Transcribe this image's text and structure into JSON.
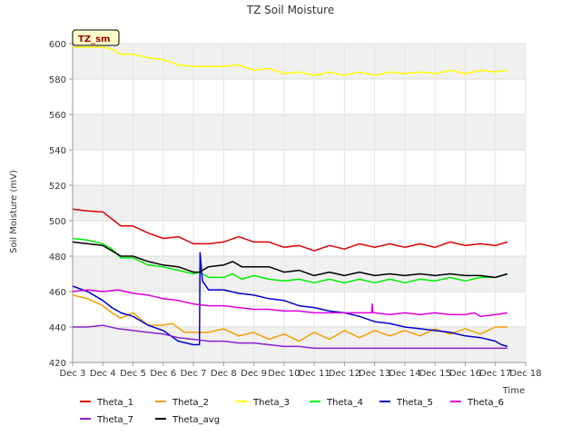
{
  "chart_data": {
    "type": "line",
    "title": "TZ Soil Moisture",
    "xlabel": "Time",
    "ylabel": "Soil Moisture (mV)",
    "badge": "TZ_sm",
    "ylim": [
      420,
      600
    ],
    "xlim": [
      3,
      18
    ],
    "yticks": [
      420,
      440,
      460,
      480,
      500,
      520,
      540,
      560,
      580,
      600
    ],
    "xticks": [
      {
        "v": 3,
        "label": "Dec 3"
      },
      {
        "v": 4,
        "label": "Dec 4"
      },
      {
        "v": 5,
        "label": "Dec 5"
      },
      {
        "v": 6,
        "label": "Dec 6"
      },
      {
        "v": 7,
        "label": "Dec 7"
      },
      {
        "v": 8,
        "label": "Dec 8"
      },
      {
        "v": 9,
        "label": "Dec 9"
      },
      {
        "v": 10,
        "label": "Dec 10"
      },
      {
        "v": 11,
        "label": "Dec 11"
      },
      {
        "v": 12,
        "label": "Dec 12"
      },
      {
        "v": 13,
        "label": "Dec 13"
      },
      {
        "v": 14,
        "label": "Dec 14"
      },
      {
        "v": 15,
        "label": "Dec 15"
      },
      {
        "v": 16,
        "label": "Dec 16"
      },
      {
        "v": 17,
        "label": "Dec 17"
      },
      {
        "v": 18,
        "label": "Dec 18"
      }
    ],
    "grid": true,
    "legend_position": "bottom",
    "series": [
      {
        "name": "Theta_1",
        "color": "#dd0000",
        "points": [
          [
            3,
            506.5
          ],
          [
            3.5,
            505.5
          ],
          [
            4,
            505
          ],
          [
            4.3,
            501
          ],
          [
            4.6,
            497
          ],
          [
            5,
            497
          ],
          [
            5.5,
            493
          ],
          [
            6,
            490
          ],
          [
            6.5,
            491
          ],
          [
            7,
            487
          ],
          [
            7.5,
            487
          ],
          [
            8,
            488
          ],
          [
            8.5,
            491
          ],
          [
            9,
            488
          ],
          [
            9.5,
            488
          ],
          [
            10,
            485
          ],
          [
            10.5,
            486
          ],
          [
            11,
            483
          ],
          [
            11.5,
            486
          ],
          [
            12,
            484
          ],
          [
            12.5,
            487
          ],
          [
            13,
            485
          ],
          [
            13.5,
            487
          ],
          [
            14,
            485
          ],
          [
            14.5,
            487
          ],
          [
            15,
            485
          ],
          [
            15.5,
            488
          ],
          [
            16,
            486
          ],
          [
            16.5,
            487
          ],
          [
            17,
            486
          ],
          [
            17.4,
            488
          ]
        ]
      },
      {
        "name": "Theta_2",
        "color": "#f0a000",
        "points": [
          [
            3,
            458
          ],
          [
            3.5,
            456
          ],
          [
            4,
            452
          ],
          [
            4.3,
            448
          ],
          [
            4.6,
            445
          ],
          [
            5,
            448
          ],
          [
            5.5,
            441
          ],
          [
            6,
            441
          ],
          [
            6.3,
            442
          ],
          [
            6.7,
            437
          ],
          [
            7,
            437
          ],
          [
            7.5,
            437
          ],
          [
            8,
            439
          ],
          [
            8.5,
            435
          ],
          [
            9,
            437
          ],
          [
            9.5,
            433
          ],
          [
            10,
            436
          ],
          [
            10.5,
            432
          ],
          [
            11,
            437
          ],
          [
            11.5,
            433
          ],
          [
            12,
            438
          ],
          [
            12.5,
            434
          ],
          [
            13,
            438
          ],
          [
            13.5,
            435
          ],
          [
            14,
            438
          ],
          [
            14.5,
            435
          ],
          [
            15,
            439
          ],
          [
            15.5,
            436
          ],
          [
            16,
            439
          ],
          [
            16.5,
            436
          ],
          [
            17,
            440
          ],
          [
            17.4,
            440
          ]
        ]
      },
      {
        "name": "Theta_3",
        "color": "#ffff00",
        "points": [
          [
            3,
            598
          ],
          [
            3.5,
            598
          ],
          [
            4,
            598
          ],
          [
            4.3,
            597
          ],
          [
            4.6,
            594
          ],
          [
            5,
            594
          ],
          [
            5.5,
            592
          ],
          [
            6,
            591
          ],
          [
            6.5,
            588
          ],
          [
            7,
            587
          ],
          [
            7.5,
            587
          ],
          [
            8,
            587
          ],
          [
            8.5,
            588
          ],
          [
            9,
            585
          ],
          [
            9.5,
            586
          ],
          [
            10,
            583
          ],
          [
            10.5,
            584
          ],
          [
            11,
            582
          ],
          [
            11.5,
            584
          ],
          [
            12,
            582
          ],
          [
            12.5,
            584
          ],
          [
            13,
            582
          ],
          [
            13.5,
            584
          ],
          [
            14,
            583
          ],
          [
            14.5,
            584
          ],
          [
            15,
            583
          ],
          [
            15.5,
            585
          ],
          [
            16,
            583
          ],
          [
            16.5,
            585
          ],
          [
            17,
            584
          ],
          [
            17.4,
            585
          ]
        ]
      },
      {
        "name": "Theta_4",
        "color": "#00ee00",
        "points": [
          [
            3,
            490
          ],
          [
            3.5,
            489
          ],
          [
            4,
            487
          ],
          [
            4.3,
            484
          ],
          [
            4.6,
            479
          ],
          [
            5,
            479
          ],
          [
            5.5,
            475
          ],
          [
            6,
            474
          ],
          [
            6.5,
            472
          ],
          [
            7,
            470
          ],
          [
            7.2,
            471
          ],
          [
            7.5,
            468
          ],
          [
            8,
            468
          ],
          [
            8.3,
            470
          ],
          [
            8.6,
            467
          ],
          [
            9,
            469
          ],
          [
            9.5,
            467
          ],
          [
            10,
            466
          ],
          [
            10.5,
            467
          ],
          [
            11,
            465
          ],
          [
            11.5,
            467
          ],
          [
            12,
            465
          ],
          [
            12.5,
            467
          ],
          [
            13,
            465
          ],
          [
            13.5,
            467
          ],
          [
            14,
            465
          ],
          [
            14.5,
            467
          ],
          [
            15,
            466
          ],
          [
            15.5,
            468
          ],
          [
            16,
            466
          ],
          [
            16.5,
            468
          ],
          [
            17,
            468
          ],
          [
            17.4,
            470
          ]
        ]
      },
      {
        "name": "Theta_5",
        "color": "#0000cc",
        "points": [
          [
            3,
            463
          ],
          [
            3.5,
            460
          ],
          [
            4,
            455
          ],
          [
            4.3,
            451
          ],
          [
            4.6,
            448
          ],
          [
            5,
            446
          ],
          [
            5.5,
            441
          ],
          [
            6,
            438
          ],
          [
            6.5,
            432
          ],
          [
            7,
            430
          ],
          [
            7.2,
            430
          ],
          [
            7.22,
            482
          ],
          [
            7.3,
            466
          ],
          [
            7.5,
            461
          ],
          [
            8,
            461
          ],
          [
            8.5,
            459
          ],
          [
            9,
            458
          ],
          [
            9.5,
            456
          ],
          [
            10,
            455
          ],
          [
            10.5,
            452
          ],
          [
            11,
            451
          ],
          [
            11.5,
            449
          ],
          [
            12,
            448
          ],
          [
            12.5,
            446
          ],
          [
            13,
            443
          ],
          [
            13.5,
            442
          ],
          [
            14,
            440
          ],
          [
            14.5,
            439
          ],
          [
            15,
            438
          ],
          [
            15.5,
            437
          ],
          [
            16,
            435
          ],
          [
            16.5,
            434
          ],
          [
            17,
            432
          ],
          [
            17.2,
            430
          ],
          [
            17.4,
            429
          ]
        ]
      },
      {
        "name": "Theta_6",
        "color": "#dd00dd",
        "points": [
          [
            3,
            460
          ],
          [
            3.5,
            461
          ],
          [
            4,
            460
          ],
          [
            4.5,
            461
          ],
          [
            5,
            459
          ],
          [
            5.5,
            458
          ],
          [
            6,
            456
          ],
          [
            6.5,
            455
          ],
          [
            7,
            453
          ],
          [
            7.5,
            452
          ],
          [
            8,
            452
          ],
          [
            8.5,
            451
          ],
          [
            9,
            450
          ],
          [
            9.5,
            450
          ],
          [
            10,
            449
          ],
          [
            10.5,
            449
          ],
          [
            11,
            448
          ],
          [
            11.5,
            448
          ],
          [
            12,
            448
          ],
          [
            12.5,
            448
          ],
          [
            12.9,
            448
          ],
          [
            12.92,
            453
          ],
          [
            12.94,
            448
          ],
          [
            13,
            448
          ],
          [
            13.5,
            447
          ],
          [
            14,
            448
          ],
          [
            14.5,
            447
          ],
          [
            15,
            448
          ],
          [
            15.5,
            447
          ],
          [
            16,
            447
          ],
          [
            16.3,
            448
          ],
          [
            16.5,
            446
          ],
          [
            17,
            447
          ],
          [
            17.4,
            448
          ]
        ]
      },
      {
        "name": "Theta_7",
        "color": "#8822cc",
        "points": [
          [
            3,
            440
          ],
          [
            3.5,
            440
          ],
          [
            4,
            441
          ],
          [
            4.5,
            439
          ],
          [
            5,
            438
          ],
          [
            5.5,
            437
          ],
          [
            6,
            436
          ],
          [
            6.5,
            434
          ],
          [
            7,
            433
          ],
          [
            7.5,
            432
          ],
          [
            8,
            432
          ],
          [
            8.5,
            431
          ],
          [
            9,
            431
          ],
          [
            9.5,
            430
          ],
          [
            10,
            429
          ],
          [
            10.5,
            429
          ],
          [
            11,
            428
          ],
          [
            11.5,
            428
          ],
          [
            12,
            428
          ],
          [
            12.5,
            428
          ],
          [
            13,
            428
          ],
          [
            13.5,
            428
          ],
          [
            14,
            428
          ],
          [
            14.5,
            428
          ],
          [
            15,
            428
          ],
          [
            15.5,
            428
          ],
          [
            16,
            428
          ],
          [
            16.5,
            428
          ],
          [
            17,
            428
          ],
          [
            17.4,
            428
          ]
        ]
      },
      {
        "name": "Theta_avg",
        "color": "#000000",
        "points": [
          [
            3,
            488
          ],
          [
            3.5,
            487
          ],
          [
            4,
            486
          ],
          [
            4.3,
            483
          ],
          [
            4.6,
            480
          ],
          [
            5,
            480
          ],
          [
            5.5,
            477
          ],
          [
            6,
            475
          ],
          [
            6.5,
            474
          ],
          [
            7,
            471
          ],
          [
            7.2,
            471
          ],
          [
            7.5,
            474
          ],
          [
            8,
            475
          ],
          [
            8.3,
            477
          ],
          [
            8.6,
            474
          ],
          [
            9,
            474
          ],
          [
            9.5,
            474
          ],
          [
            10,
            471
          ],
          [
            10.5,
            472
          ],
          [
            11,
            469
          ],
          [
            11.5,
            471
          ],
          [
            12,
            469
          ],
          [
            12.5,
            471
          ],
          [
            13,
            469
          ],
          [
            13.5,
            470
          ],
          [
            14,
            469
          ],
          [
            14.5,
            470
          ],
          [
            15,
            469
          ],
          [
            15.5,
            470
          ],
          [
            16,
            469
          ],
          [
            16.5,
            469
          ],
          [
            17,
            468
          ],
          [
            17.4,
            470
          ]
        ]
      }
    ]
  }
}
